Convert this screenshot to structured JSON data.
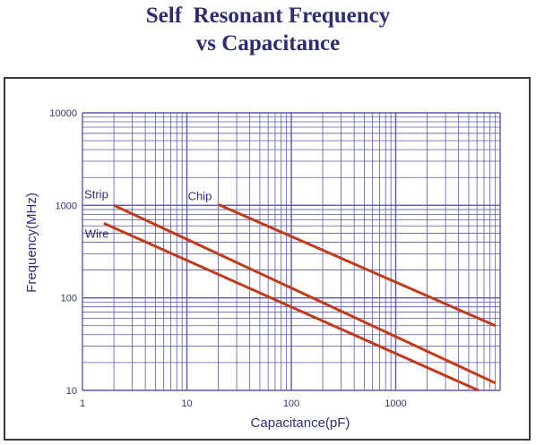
{
  "title": {
    "line1": "Self  Resonant Frequency",
    "line2": "vs Capacitance"
  },
  "colors": {
    "title": "#2e2e6e",
    "grid": "#5c5aa8",
    "series": "#c03a1c",
    "axis_text": "#2e2e7e"
  },
  "chart_data": {
    "type": "line",
    "title": "Self  Resonant Frequency vs Capacitance",
    "xlabel": "Capacitance(pF)",
    "ylabel": "Frequency(MHz)",
    "xscale": "log",
    "yscale": "log",
    "xlim": [
      1,
      10000
    ],
    "ylim": [
      10,
      10000
    ],
    "x_ticks": [
      "1",
      "10",
      "100",
      "1000"
    ],
    "y_ticks": [
      "10000",
      "1000",
      "100",
      "10"
    ],
    "grid": true,
    "series": [
      {
        "name": "Strip",
        "x": [
          2,
          9000
        ],
        "y": [
          1000,
          12
        ]
      },
      {
        "name": "Wire",
        "x": [
          1.6,
          6200
        ],
        "y": [
          640,
          10
        ]
      },
      {
        "name": "Chip",
        "x": [
          20,
          9000
        ],
        "y": [
          1020,
          50
        ]
      }
    ]
  }
}
